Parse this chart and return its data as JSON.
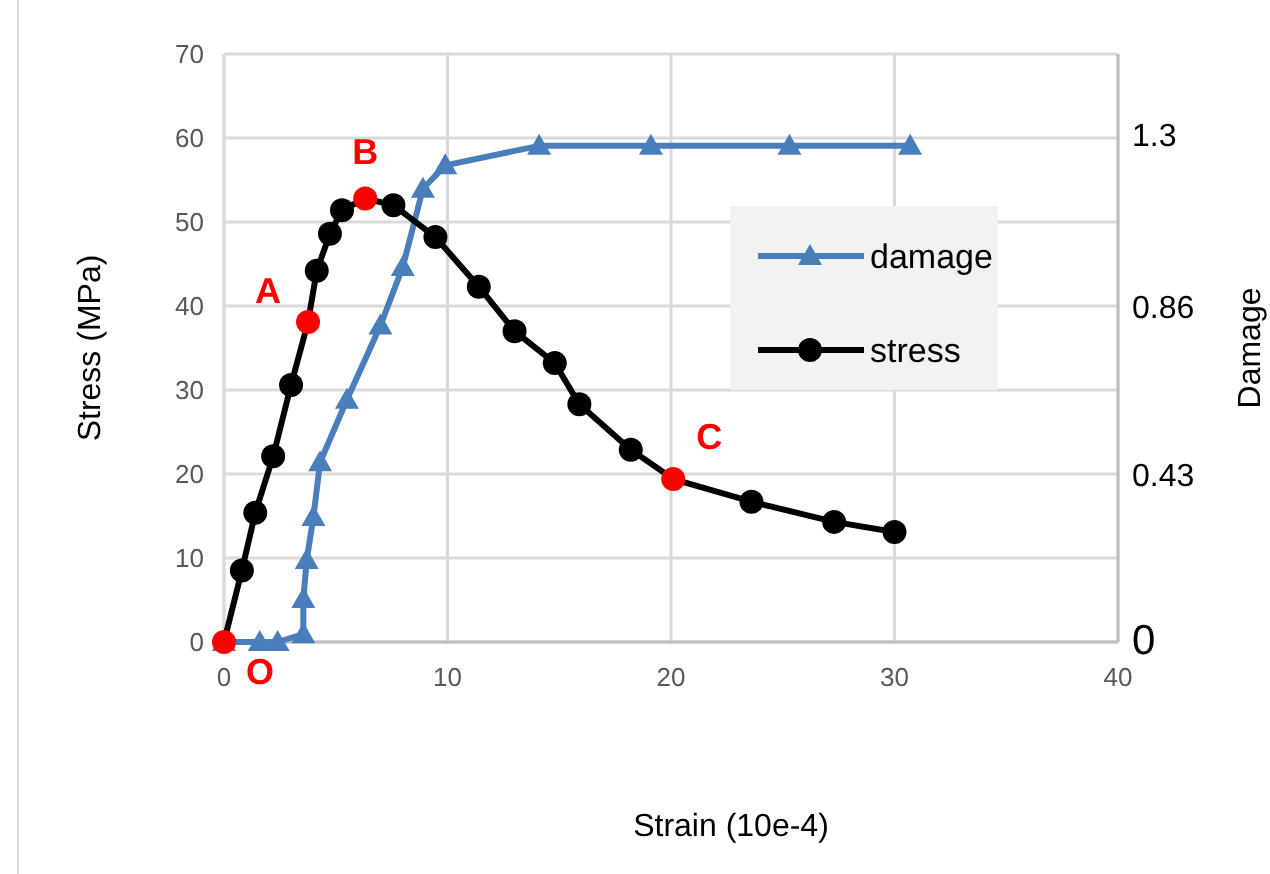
{
  "chart_data": {
    "type": "line",
    "xlabel": "Strain (10e-4)",
    "ylabel": "Stress (MPa)",
    "y2label": "Damage",
    "xlim": [
      0,
      40
    ],
    "xticks": [
      0,
      10,
      20,
      30,
      40
    ],
    "ylim": [
      0,
      70
    ],
    "yticks": [
      0,
      10,
      20,
      30,
      40,
      50,
      60,
      70
    ],
    "y2lim": [
      0,
      1.505
    ],
    "y2ticks": [
      0,
      0.43,
      0.86,
      1.3
    ],
    "grid": true,
    "legend": "right",
    "series": [
      {
        "name": "damage",
        "color": "#4a7ebb",
        "marker": "triangle",
        "axis": "y2",
        "x": [
          0,
          1.6,
          2.4,
          3.55,
          3.55,
          3.7,
          4.0,
          4.3,
          5.5,
          7.0,
          8.0,
          8.9,
          9.9,
          14.1,
          19.1,
          25.3,
          30.7
        ],
        "values": [
          0,
          0,
          0,
          0.02,
          0.11,
          0.21,
          0.32,
          0.46,
          0.62,
          0.81,
          0.96,
          1.16,
          1.22,
          1.27,
          1.27,
          1.27,
          1.27
        ]
      },
      {
        "name": "stress",
        "color": "#000000",
        "colors": [
          "#ff0000",
          "#000000",
          "#000000",
          "#000000",
          "#000000",
          "#ff0000",
          "#000000",
          "#000000",
          "#000000",
          "#ff0000",
          "#000000",
          "#000000",
          "#000000",
          "#000000",
          "#000000",
          "#000000",
          "#000000",
          "#ff0000",
          "#000000",
          "#000000",
          "#000000"
        ],
        "marker": "circle",
        "x": [
          0,
          0.8,
          1.4,
          2.2,
          3.0,
          3.76,
          4.15,
          4.74,
          5.28,
          6.32,
          7.58,
          9.46,
          11.4,
          13.0,
          14.8,
          15.9,
          18.2,
          20.1,
          23.6,
          27.3,
          30.0
        ],
        "values": [
          0,
          8.5,
          15.4,
          22.1,
          30.6,
          38.1,
          44.2,
          48.6,
          51.4,
          52.8,
          52.0,
          48.2,
          42.3,
          37.0,
          33.2,
          28.3,
          22.9,
          19.4,
          16.7,
          14.3,
          13.1
        ]
      }
    ],
    "annotations": [
      {
        "text": "O",
        "x": 0,
        "y": 0
      },
      {
        "text": "A",
        "x": 3.76,
        "y": 38.1
      },
      {
        "text": "B",
        "x": 6.32,
        "y": 52.8
      },
      {
        "text": "C",
        "x": 20.1,
        "y": 19.4
      }
    ]
  }
}
